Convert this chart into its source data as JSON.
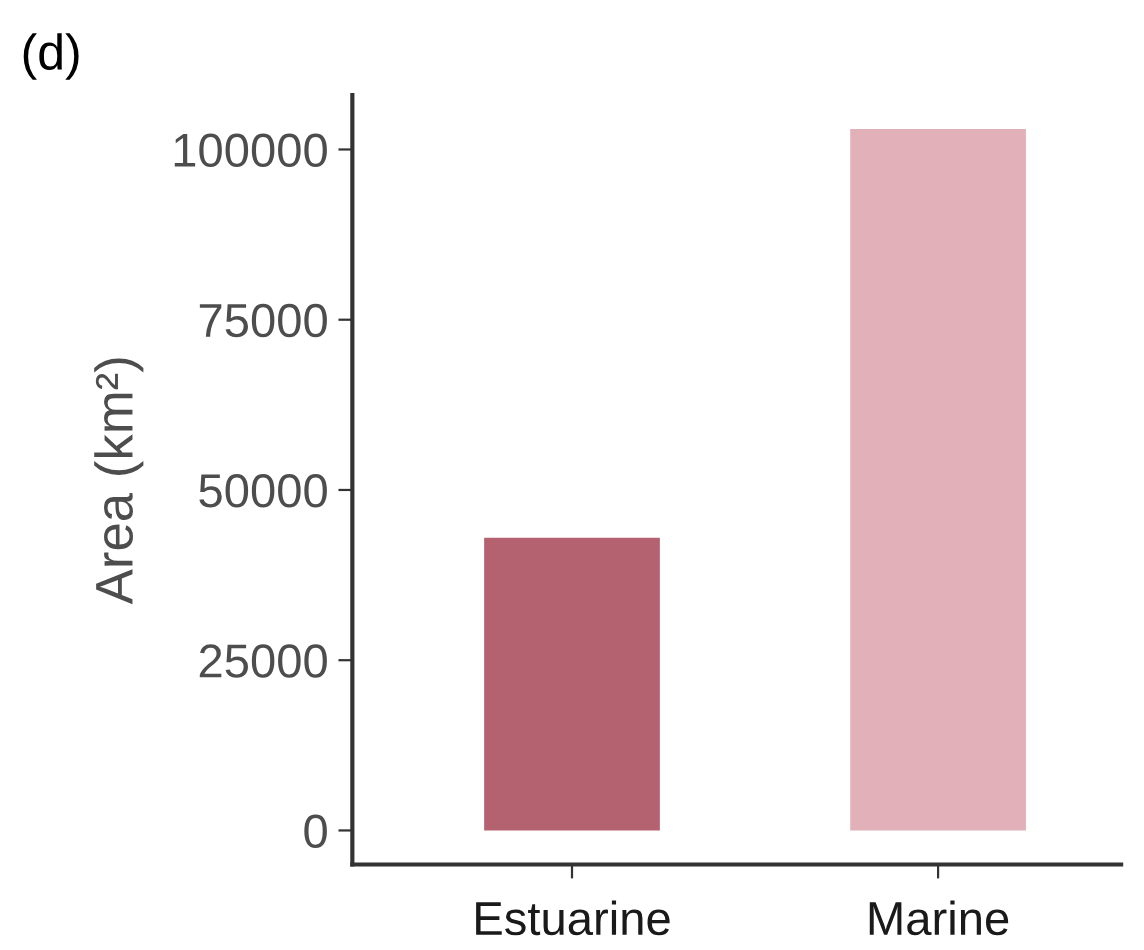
{
  "chart_data": {
    "type": "bar",
    "ylabel": "Area (km²)",
    "annotations": [
      "(d)"
    ],
    "categories": [
      "Estuarine",
      "Marine"
    ],
    "values": [
      43000,
      103000
    ],
    "colors": [
      "#b56270",
      "#e2b0b8"
    ],
    "ylim": [
      -5000,
      108000
    ],
    "yticks": [
      0,
      25000,
      50000,
      75000,
      100000
    ],
    "grid": false,
    "legend": false
  }
}
